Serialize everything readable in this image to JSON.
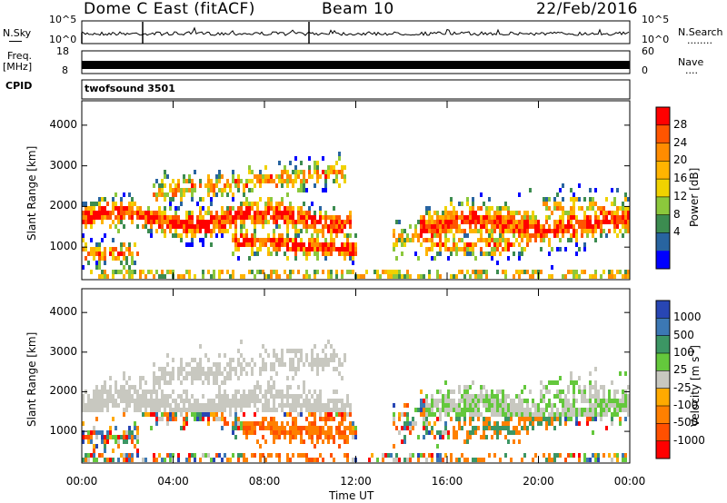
{
  "header": {
    "title": "Dome C East (fitACF)",
    "beam": "Beam 10",
    "date": "22/Feb/2016"
  },
  "nsky_panel": {
    "left_label": "N.Sky",
    "left_ticks": [
      "10^5",
      "10^0"
    ],
    "right_ticks": [
      "10^5",
      "10^0"
    ],
    "right_label": "N.Search",
    "right_dots": "........"
  },
  "freq_panel": {
    "left_label_top": "Freq.",
    "left_label_bottom": "[MHz]",
    "left_ticks": [
      "18",
      "8"
    ],
    "right_ticks": [
      "60",
      "0"
    ],
    "right_label": "Nave",
    "right_dots": "....",
    "values": [
      8,
      18
    ],
    "right_values": [
      0,
      60
    ]
  },
  "cpid_panel": {
    "label": "CPID",
    "value": "twofsound 3501"
  },
  "chart_data": [
    {
      "type": "heatmap",
      "name": "power",
      "ylabel": "Slant Range [km]",
      "ylim": [
        200,
        4600
      ],
      "yticks": [
        "1000",
        "2000",
        "3000",
        "4000"
      ],
      "ytick_values": [
        1000,
        2000,
        3000,
        4000
      ],
      "xlim": [
        "00:00",
        "24:00"
      ],
      "colorbar": {
        "label": "Power [dB]",
        "tick_labels": [
          "28",
          "24",
          "20",
          "16",
          "12",
          "8",
          "4"
        ],
        "colors": [
          "#ff0000",
          "#ff5500",
          "#ff8c00",
          "#ffb400",
          "#f0d200",
          "#8cc83c",
          "#3c8c50",
          "#2864a0",
          "#0000ff"
        ]
      }
    },
    {
      "type": "heatmap",
      "name": "velocity",
      "ylabel": "Slant Range [km]",
      "ylim": [
        200,
        4600
      ],
      "yticks": [
        "1000",
        "2000",
        "3000",
        "4000"
      ],
      "ytick_values": [
        1000,
        2000,
        3000,
        4000
      ],
      "xlim": [
        "00:00",
        "24:00"
      ],
      "colorbar": {
        "label": "Velocity [m s",
        "label_sup": "-1",
        "label_end": "]",
        "tick_labels": [
          "1000",
          "500",
          "100",
          "25",
          "-25",
          "-100",
          "-500",
          "-1000"
        ],
        "colors": [
          "#2846b4",
          "#3c78b4",
          "#3c9664",
          "#64c83c",
          "#c8c8c0",
          "#ffaa00",
          "#ff8000",
          "#ff5000",
          "#ff0000"
        ]
      }
    }
  ],
  "x_axis": {
    "label": "Time UT",
    "ticks": [
      "00:00",
      "04:00",
      "08:00",
      "12:00",
      "16:00",
      "20:00",
      "00:00"
    ],
    "tick_hours": [
      0,
      4,
      8,
      12,
      16,
      20,
      24
    ]
  }
}
